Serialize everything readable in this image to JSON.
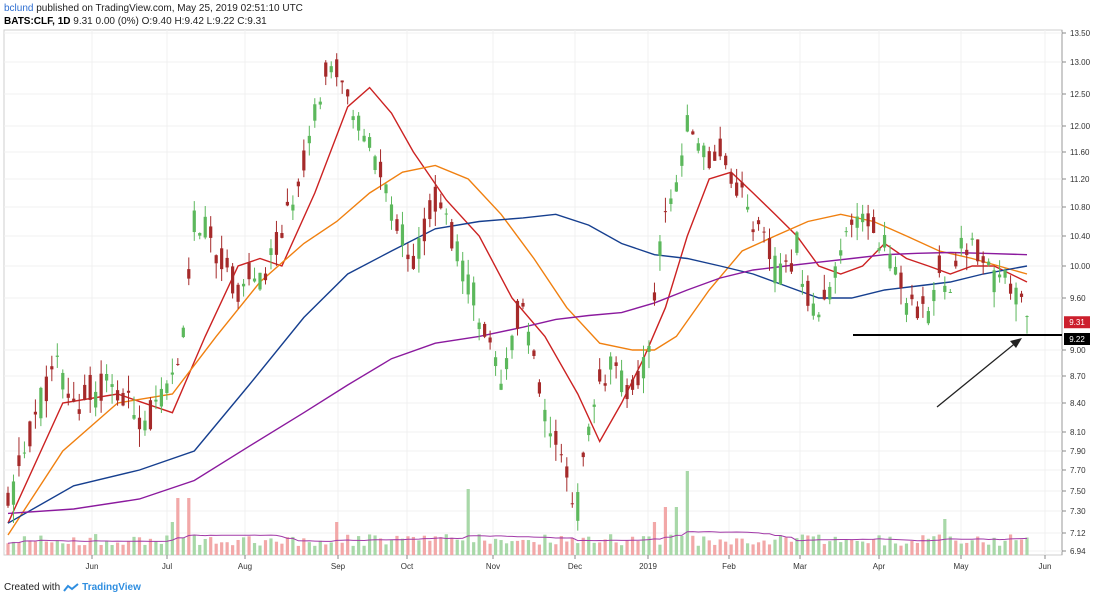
{
  "header": {
    "author": "bclund",
    "published_text": "published on TradingView.com, May 25, 2019 02:51:10 UTC",
    "symbol_line": "BATS:CLF, 1D",
    "quote_line": "9.31 0.00 (0%) O:9.40 H:9.42 L:9.22 C:9.31"
  },
  "footer": {
    "created_text": "Created with",
    "brand": "TradingView"
  },
  "colors": {
    "up": "#5cb85c",
    "down": "#a52a2a",
    "vol_up": "#a8d8a8",
    "vol_down": "#f2a8a8",
    "ma_red": "#cc2222",
    "ma_orange": "#f08010",
    "ma_blue": "#163f8f",
    "ma_purple": "#8b1a9e",
    "badge_price": "#cc1f2d",
    "badge_support": "#000000"
  },
  "price_badges": [
    "9.31",
    "9.22"
  ],
  "chart_data": {
    "type": "candlestick",
    "y_ticks": [
      "13.50",
      "13.00",
      "12.50",
      "12.00",
      "11.60",
      "11.20",
      "10.80",
      "10.40",
      "10.00",
      "9.60",
      "9.22",
      "9.00",
      "8.70",
      "8.40",
      "8.10",
      "7.90",
      "7.70",
      "7.50",
      "7.30",
      "7.12",
      "6.94"
    ],
    "x_ticks": [
      "Jun",
      "Jul",
      "Aug",
      "Sep",
      "Oct",
      "Nov",
      "Dec",
      "2019",
      "Feb",
      "Mar",
      "Apr",
      "May",
      "Jun"
    ],
    "close_path": [
      [
        0,
        7.3
      ],
      [
        3,
        7.9
      ],
      [
        6,
        8.45
      ],
      [
        9,
        8.8
      ],
      [
        12,
        8.35
      ],
      [
        15,
        8.5
      ],
      [
        18,
        8.6
      ],
      [
        22,
        8.35
      ],
      [
        26,
        8.25
      ],
      [
        29,
        8.5
      ],
      [
        31,
        8.75
      ],
      [
        32,
        9.3
      ],
      [
        34,
        10.6
      ],
      [
        36,
        10.5
      ],
      [
        38,
        10.2
      ],
      [
        40,
        9.9
      ],
      [
        42,
        9.7
      ],
      [
        44,
        9.85
      ],
      [
        46,
        9.75
      ],
      [
        48,
        10.1
      ],
      [
        50,
        10.4
      ],
      [
        52,
        10.9
      ],
      [
        54,
        11.5
      ],
      [
        56,
        12.3
      ],
      [
        58,
        12.8
      ],
      [
        60,
        12.9
      ],
      [
        62,
        12.4
      ],
      [
        64,
        12.0
      ],
      [
        66,
        11.7
      ],
      [
        68,
        11.3
      ],
      [
        70,
        10.8
      ],
      [
        72,
        10.4
      ],
      [
        74,
        10.1
      ],
      [
        76,
        10.5
      ],
      [
        78,
        10.9
      ],
      [
        80,
        10.6
      ],
      [
        82,
        10.2
      ],
      [
        84,
        9.8
      ],
      [
        86,
        9.5
      ],
      [
        88,
        9.0
      ],
      [
        90,
        8.5
      ],
      [
        92,
        9.2
      ],
      [
        94,
        9.5
      ],
      [
        96,
        8.8
      ],
      [
        98,
        8.2
      ],
      [
        100,
        7.9
      ],
      [
        102,
        7.6
      ],
      [
        104,
        7.4
      ],
      [
        106,
        8.0
      ],
      [
        108,
        8.6
      ],
      [
        110,
        8.8
      ],
      [
        112,
        8.6
      ],
      [
        114,
        8.5
      ],
      [
        116,
        8.8
      ],
      [
        118,
        9.6
      ],
      [
        120,
        10.8
      ],
      [
        122,
        11.2
      ],
      [
        124,
        12.0
      ],
      [
        126,
        11.8
      ],
      [
        128,
        11.5
      ],
      [
        130,
        11.6
      ],
      [
        132,
        11.2
      ],
      [
        134,
        11.0
      ],
      [
        136,
        10.6
      ],
      [
        138,
        10.3
      ],
      [
        140,
        10.0
      ],
      [
        142,
        9.9
      ],
      [
        144,
        10.3
      ],
      [
        146,
        9.6
      ],
      [
        148,
        9.4
      ],
      [
        150,
        9.6
      ],
      [
        152,
        10.2
      ],
      [
        154,
        10.5
      ],
      [
        156,
        10.7
      ],
      [
        158,
        10.5
      ],
      [
        160,
        10.3
      ],
      [
        162,
        10.0
      ],
      [
        164,
        9.6
      ],
      [
        166,
        9.3
      ],
      [
        168,
        9.5
      ],
      [
        170,
        10.0
      ],
      [
        172,
        9.8
      ],
      [
        174,
        10.2
      ],
      [
        176,
        10.3
      ],
      [
        178,
        10.0
      ],
      [
        180,
        9.8
      ],
      [
        182,
        10.0
      ],
      [
        184,
        9.6
      ],
      [
        186,
        9.3
      ]
    ],
    "ma_red": [
      [
        0,
        7.2
      ],
      [
        10,
        8.4
      ],
      [
        20,
        8.5
      ],
      [
        30,
        8.3
      ],
      [
        36,
        9.2
      ],
      [
        42,
        10.0
      ],
      [
        46,
        10.1
      ],
      [
        50,
        10.0
      ],
      [
        56,
        11.0
      ],
      [
        62,
        12.3
      ],
      [
        66,
        12.6
      ],
      [
        70,
        12.2
      ],
      [
        74,
        11.6
      ],
      [
        80,
        10.9
      ],
      [
        86,
        10.4
      ],
      [
        92,
        9.6
      ],
      [
        98,
        9.2
      ],
      [
        104,
        8.5
      ],
      [
        108,
        8.0
      ],
      [
        112,
        8.4
      ],
      [
        116,
        8.9
      ],
      [
        120,
        9.5
      ],
      [
        124,
        10.4
      ],
      [
        128,
        11.2
      ],
      [
        132,
        11.3
      ],
      [
        136,
        11.0
      ],
      [
        140,
        10.7
      ],
      [
        144,
        10.4
      ],
      [
        148,
        10.0
      ],
      [
        152,
        9.9
      ],
      [
        156,
        10.0
      ],
      [
        160,
        10.3
      ],
      [
        164,
        10.1
      ],
      [
        168,
        10.0
      ],
      [
        172,
        9.9
      ],
      [
        176,
        10.0
      ],
      [
        180,
        10.0
      ],
      [
        186,
        9.8
      ]
    ],
    "ma_orange": [
      [
        0,
        7.1
      ],
      [
        10,
        7.9
      ],
      [
        20,
        8.4
      ],
      [
        30,
        8.5
      ],
      [
        38,
        9.2
      ],
      [
        46,
        9.8
      ],
      [
        54,
        10.3
      ],
      [
        60,
        10.6
      ],
      [
        66,
        11.0
      ],
      [
        72,
        11.3
      ],
      [
        78,
        11.4
      ],
      [
        84,
        11.2
      ],
      [
        90,
        10.7
      ],
      [
        96,
        10.1
      ],
      [
        102,
        9.5
      ],
      [
        108,
        9.1
      ],
      [
        114,
        9.0
      ],
      [
        118,
        9.0
      ],
      [
        122,
        9.2
      ],
      [
        128,
        9.7
      ],
      [
        134,
        10.2
      ],
      [
        140,
        10.4
      ],
      [
        146,
        10.6
      ],
      [
        152,
        10.7
      ],
      [
        158,
        10.6
      ],
      [
        164,
        10.4
      ],
      [
        170,
        10.2
      ],
      [
        176,
        10.1
      ],
      [
        186,
        9.9
      ]
    ],
    "ma_blue": [
      [
        0,
        7.2
      ],
      [
        12,
        7.55
      ],
      [
        24,
        7.7
      ],
      [
        34,
        7.9
      ],
      [
        44,
        8.6
      ],
      [
        54,
        9.4
      ],
      [
        62,
        9.9
      ],
      [
        70,
        10.2
      ],
      [
        78,
        10.5
      ],
      [
        86,
        10.6
      ],
      [
        94,
        10.65
      ],
      [
        100,
        10.7
      ],
      [
        106,
        10.55
      ],
      [
        112,
        10.3
      ],
      [
        118,
        10.15
      ],
      [
        124,
        10.1
      ],
      [
        130,
        10.0
      ],
      [
        136,
        9.9
      ],
      [
        142,
        9.75
      ],
      [
        148,
        9.6
      ],
      [
        154,
        9.6
      ],
      [
        160,
        9.7
      ],
      [
        166,
        9.75
      ],
      [
        172,
        9.8
      ],
      [
        178,
        9.9
      ],
      [
        186,
        10.0
      ]
    ],
    "ma_purple": [
      [
        0,
        7.28
      ],
      [
        12,
        7.32
      ],
      [
        24,
        7.42
      ],
      [
        34,
        7.6
      ],
      [
        44,
        7.95
      ],
      [
        54,
        8.3
      ],
      [
        62,
        8.6
      ],
      [
        70,
        8.9
      ],
      [
        78,
        9.1
      ],
      [
        86,
        9.2
      ],
      [
        94,
        9.3
      ],
      [
        100,
        9.38
      ],
      [
        106,
        9.42
      ],
      [
        112,
        9.45
      ],
      [
        118,
        9.55
      ],
      [
        124,
        9.7
      ],
      [
        130,
        9.85
      ],
      [
        136,
        9.95
      ],
      [
        142,
        10.0
      ],
      [
        148,
        10.05
      ],
      [
        154,
        10.1
      ],
      [
        160,
        10.15
      ],
      [
        166,
        10.17
      ],
      [
        172,
        10.18
      ],
      [
        178,
        10.17
      ],
      [
        186,
        10.15
      ]
    ],
    "support_level": 9.22
  }
}
